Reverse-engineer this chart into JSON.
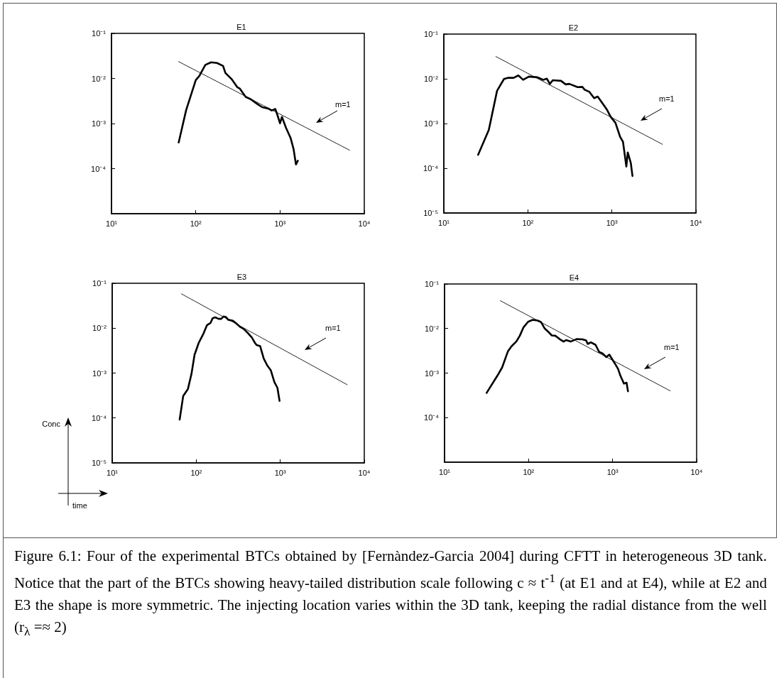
{
  "chart_data": [
    {
      "type": "line",
      "title": "E1",
      "log": "xy",
      "grid": false,
      "marker": "none",
      "xlim": [
        10,
        10000
      ],
      "xticks": [
        {
          "value": 10,
          "label": "10¹"
        },
        {
          "value": 100,
          "label": "10²"
        },
        {
          "value": 1000,
          "label": "10³"
        },
        {
          "value": 10000,
          "label": "10⁴"
        }
      ],
      "ylim": [
        1e-05,
        0.1
      ],
      "yticks": [
        {
          "value": 0.0001,
          "label": "10⁻⁴"
        },
        {
          "value": 0.001,
          "label": "10⁻³"
        },
        {
          "value": 0.01,
          "label": "10⁻²"
        },
        {
          "value": 0.1,
          "label": "10⁻¹"
        }
      ],
      "series": [
        {
          "color": "#000000",
          "line_style": "solid",
          "x": [
            62.7,
            77,
            100,
            110,
            130,
            152,
            179,
            211,
            225,
            265,
            311,
            332,
            391,
            445,
            540,
            615,
            723,
            797,
            879,
            937,
            1000,
            1054,
            1175,
            1339,
            1449,
            1545,
            1627
          ],
          "values": [
            0.00038,
            0.002,
            0.0092,
            0.0113,
            0.02,
            0.0228,
            0.022,
            0.019,
            0.0132,
            0.0098,
            0.0064,
            0.006,
            0.0039,
            0.0035,
            0.0027,
            0.0023,
            0.00215,
            0.00195,
            0.0021,
            0.00149,
            0.00101,
            0.0014,
            0.00081,
            0.00047,
            0.00027,
            0.000124,
            0.00015
          ]
        },
        {
          "color": "#000000",
          "line_style": "dotted",
          "x": [
            62.7,
            6680
          ],
          "values": [
            0.0236,
            0.000257
          ]
        }
      ],
      "annotations": [
        "m=1"
      ]
    },
    {
      "type": "line",
      "title": "E2",
      "log": "xy",
      "grid": false,
      "marker": "none",
      "xlim": [
        10,
        10000
      ],
      "xticks": [
        {
          "value": 10,
          "label": "10¹"
        },
        {
          "value": 100,
          "label": "10²"
        },
        {
          "value": 1000,
          "label": "10³"
        },
        {
          "value": 10000,
          "label": "10⁴"
        }
      ],
      "ylim": [
        1e-05,
        0.1
      ],
      "yticks": [
        {
          "value": 1e-05,
          "label": "10⁻⁵"
        },
        {
          "value": 0.0001,
          "label": "10⁻⁴"
        },
        {
          "value": 0.001,
          "label": "10⁻³"
        },
        {
          "value": 0.01,
          "label": "10⁻²"
        },
        {
          "value": 0.1,
          "label": "10⁻¹"
        }
      ],
      "series": [
        {
          "color": "#000000",
          "line_style": "solid",
          "x": [
            25.6,
            34.3,
            43,
            52,
            57.6,
            67.8,
            77,
            87.8,
            103,
            130,
            152,
            168,
            183,
            198,
            248,
            282,
            311,
            391,
            445,
            474,
            540,
            615,
            678,
            797,
            879,
            968,
            1102,
            1255,
            1356,
            1486,
            1545,
            1680,
            1758
          ],
          "values": [
            0.0002,
            0.00072,
            0.0054,
            0.0099,
            0.0105,
            0.0105,
            0.0119,
            0.0095,
            0.0112,
            0.0108,
            0.0095,
            0.0101,
            0.0077,
            0.0093,
            0.009,
            0.0075,
            0.0077,
            0.0065,
            0.0066,
            0.0057,
            0.0051,
            0.0037,
            0.004,
            0.0026,
            0.002,
            0.00141,
            0.00104,
            0.0005,
            0.00039,
            0.000109,
            0.000226,
            0.000131,
            6.7e-05
          ]
        },
        {
          "color": "#000000",
          "line_style": "dotted",
          "x": [
            41.7,
            4036
          ],
          "values": [
            0.0314,
            0.00034
          ]
        }
      ],
      "annotations": [
        "m=1"
      ]
    },
    {
      "type": "line",
      "title": "E3",
      "xlabel": "time",
      "ylabel": "Conc",
      "log": "xy",
      "grid": false,
      "marker": "none",
      "xlim": [
        10,
        10000
      ],
      "xticks": [
        {
          "value": 10,
          "label": "10¹"
        },
        {
          "value": 100,
          "label": "10²"
        },
        {
          "value": 1000,
          "label": "10³"
        },
        {
          "value": 10000,
          "label": "10⁴"
        }
      ],
      "ylim": [
        1e-05,
        0.1
      ],
      "yticks": [
        {
          "value": 1e-05,
          "label": "10⁻⁵"
        },
        {
          "value": 0.0001,
          "label": "10⁻⁴"
        },
        {
          "value": 0.001,
          "label": "10⁻³"
        },
        {
          "value": 0.01,
          "label": "10⁻²"
        },
        {
          "value": 0.1,
          "label": "10⁻¹"
        }
      ],
      "series": [
        {
          "color": "#000000",
          "line_style": "solid",
          "x": [
            63.5,
            70,
            79.6,
            87.8,
            95.5,
            107,
            122,
            134,
            148,
            157,
            168,
            185,
            198,
            211,
            225,
            240,
            273,
            301,
            332,
            366,
            417,
            459,
            500,
            523,
            576,
            635,
            700,
            771,
            851,
            925,
            981
          ],
          "values": [
            9.2e-05,
            0.00031,
            0.00044,
            0.00096,
            0.00255,
            0.0047,
            0.0076,
            0.0116,
            0.0131,
            0.0167,
            0.0174,
            0.0161,
            0.0161,
            0.0182,
            0.0178,
            0.0154,
            0.0147,
            0.0127,
            0.0107,
            0.0097,
            0.0076,
            0.0062,
            0.0047,
            0.0042,
            0.004,
            0.00212,
            0.00148,
            0.00116,
            0.00063,
            0.00047,
            0.00024
          ]
        },
        {
          "color": "#000000",
          "line_style": "dotted",
          "x": [
            66.8,
            6270
          ],
          "values": [
            0.058,
            0.00055
          ]
        }
      ],
      "annotations": [
        "m=1"
      ]
    },
    {
      "type": "line",
      "title": "E4",
      "log": "xy",
      "grid": false,
      "marker": "none",
      "xlim": [
        10,
        10000
      ],
      "xticks": [
        {
          "value": 10,
          "label": "10¹"
        },
        {
          "value": 100,
          "label": "10²"
        },
        {
          "value": 1000,
          "label": "10³"
        },
        {
          "value": 10000,
          "label": "10⁴"
        }
      ],
      "ylim": [
        1e-05,
        0.1
      ],
      "yticks": [
        {
          "value": 0.0001,
          "label": "10⁻⁴"
        },
        {
          "value": 0.001,
          "label": "10⁻³"
        },
        {
          "value": 0.01,
          "label": "10⁻²"
        },
        {
          "value": 0.1,
          "label": "10⁻¹"
        }
      ],
      "series": [
        {
          "color": "#000000",
          "line_style": "solid",
          "x": [
            31.7,
            42.5,
            48.4,
            56.9,
            62.7,
            71.4,
            78.7,
            86.7,
            98.7,
            112,
            128,
            141,
            155,
            171,
            189,
            208,
            237,
            261,
            279,
            317,
            373,
            439,
            484,
            506,
            551,
            627,
            691,
            762,
            839,
            914,
            1054,
            1162,
            1239,
            1366,
            1466,
            1524
          ],
          "values": [
            0.00036,
            0.00087,
            0.00133,
            0.0031,
            0.004,
            0.0051,
            0.0069,
            0.0105,
            0.0142,
            0.0157,
            0.0151,
            0.0139,
            0.0101,
            0.0085,
            0.007,
            0.0069,
            0.0057,
            0.0051,
            0.0055,
            0.0051,
            0.0058,
            0.0057,
            0.0054,
            0.0045,
            0.0049,
            0.0043,
            0.003,
            0.00275,
            0.00229,
            0.00259,
            0.00169,
            0.00124,
            0.00087,
            0.00058,
            0.00061,
            0.00039
          ]
        },
        {
          "color": "#000000",
          "line_style": "dotted",
          "x": [
            46.2,
            4840
          ],
          "values": [
            0.042,
            0.0004
          ]
        }
      ],
      "annotations": [
        "m=1",
        "Figure 6.1: Four of the experimental BTCs obtained by [Fernàndez-Garcia 2004] during CFTT in heterogeneous 3D tank. Notice that the part of the BTCs showing heavy-tailed distribution scale following c ≈ t$^{-1}$ (at E1 and at E4), while at E2 and E3 the shape is more symmetric. The injecting location varies within the 3D tank, keeping the radial distance from the well (r$_{λ}$ =≈ 2)"
      ]
    }
  ]
}
